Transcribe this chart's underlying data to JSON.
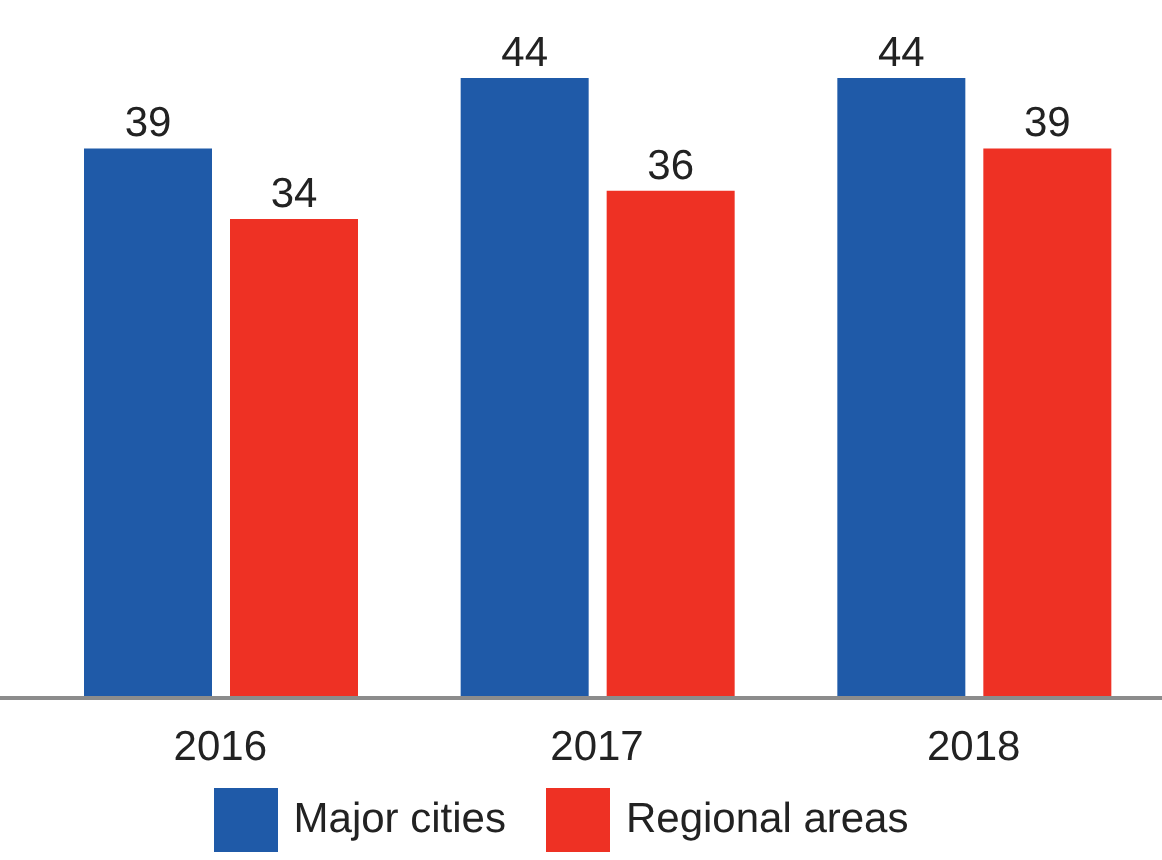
{
  "chart_data": {
    "type": "bar",
    "categories": [
      "2016",
      "2017",
      "2018"
    ],
    "series": [
      {
        "name": "Major cities",
        "color": "#1f5aa8",
        "values": [
          39,
          44,
          44
        ]
      },
      {
        "name": "Regional areas",
        "color": "#ee3124",
        "values": [
          34,
          36,
          39
        ]
      }
    ],
    "data_labels": true,
    "legend": "bottom",
    "tick_labels": "x"
  }
}
